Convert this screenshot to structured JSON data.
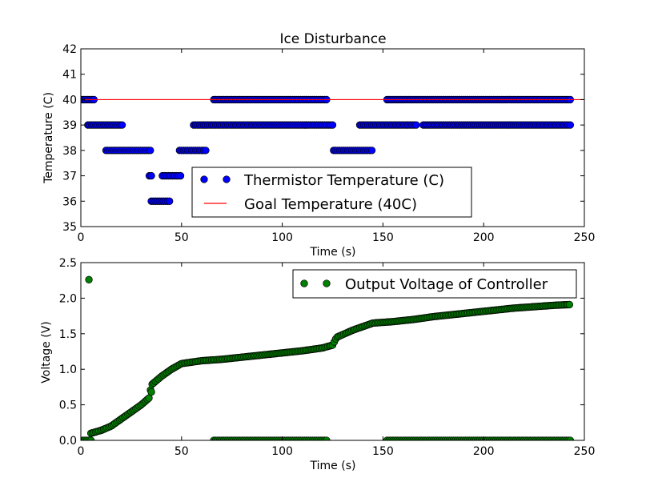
{
  "chart_data": [
    {
      "type": "scatter",
      "title": "Ice Disturbance",
      "xlabel": "Time (s)",
      "ylabel": "Temperature (C)",
      "xlim": [
        0,
        250
      ],
      "ylim": [
        35,
        42
      ],
      "xticks": [
        "0",
        "50",
        "100",
        "150",
        "200",
        "250"
      ],
      "yticks": [
        "35",
        "36",
        "37",
        "38",
        "39",
        "40",
        "41",
        "42"
      ],
      "legend_position": "lower-center",
      "series": [
        {
          "name": "Thermistor Temperature (C)",
          "kind": "markers",
          "color": "#0000ff",
          "segments": [
            {
              "x_start": 0.5,
              "x_end": 6.5,
              "y": 40
            },
            {
              "x_start": 3.5,
              "x_end": 12.5,
              "y": 39
            },
            {
              "x_start": 13.5,
              "x_end": 20.5,
              "y": 39
            },
            {
              "x_start": 12.5,
              "x_end": 35.0,
              "y": 38
            },
            {
              "x_start": 34.0,
              "x_end": 35.5,
              "y": 37
            },
            {
              "x_start": 35.0,
              "x_end": 44.5,
              "y": 36
            },
            {
              "x_start": 40.5,
              "x_end": 50.0,
              "y": 37
            },
            {
              "x_start": 49.0,
              "x_end": 62.5,
              "y": 38
            },
            {
              "x_start": 56.0,
              "x_end": 125.5,
              "y": 39
            },
            {
              "x_start": 66.0,
              "x_end": 122.0,
              "y": 40
            },
            {
              "x_start": 125.5,
              "x_end": 144.5,
              "y": 38
            },
            {
              "x_start": 138.5,
              "x_end": 167.0,
              "y": 39
            },
            {
              "x_start": 152.0,
              "x_end": 243.0,
              "y": 40
            },
            {
              "x_start": 170.0,
              "x_end": 243.0,
              "y": 39
            }
          ]
        },
        {
          "name": "Goal Temperature (40C)",
          "kind": "line",
          "color": "#ff0000",
          "x": [
            0,
            250
          ],
          "y": [
            40,
            40
          ]
        }
      ]
    },
    {
      "type": "scatter",
      "title": "",
      "xlabel": "Time (s)",
      "ylabel": "Voltage (V)",
      "xlim": [
        0,
        250
      ],
      "ylim": [
        0.0,
        2.5
      ],
      "xticks": [
        "0",
        "50",
        "100",
        "150",
        "200",
        "250"
      ],
      "yticks": [
        "0.0",
        "0.5",
        "1.0",
        "1.5",
        "2.0",
        "2.5"
      ],
      "legend_position": "upper-right",
      "series": [
        {
          "name": "Output Voltage of Controller",
          "kind": "markers",
          "color": "#008000",
          "curve": [
            [
              5,
              0.1
            ],
            [
              10,
              0.14
            ],
            [
              15,
              0.2
            ],
            [
              20,
              0.3
            ],
            [
              25,
              0.4
            ],
            [
              30,
              0.5
            ],
            [
              34,
              0.6
            ],
            [
              35,
              0.78
            ],
            [
              40,
              0.9
            ],
            [
              45,
              1.0
            ],
            [
              50,
              1.08
            ],
            [
              55,
              1.1
            ],
            [
              60,
              1.12
            ],
            [
              70,
              1.14
            ],
            [
              80,
              1.17
            ],
            [
              90,
              1.2
            ],
            [
              100,
              1.23
            ],
            [
              110,
              1.26
            ],
            [
              120,
              1.3
            ],
            [
              125,
              1.34
            ],
            [
              127,
              1.45
            ],
            [
              135,
              1.55
            ],
            [
              145,
              1.65
            ],
            [
              155,
              1.67
            ],
            [
              165,
              1.7
            ],
            [
              175,
              1.74
            ],
            [
              185,
              1.77
            ],
            [
              195,
              1.8
            ],
            [
              205,
              1.83
            ],
            [
              215,
              1.86
            ],
            [
              225,
              1.88
            ],
            [
              235,
              1.9
            ],
            [
              243,
              1.91
            ]
          ],
          "extra_points": [
            [
              4,
              2.26
            ],
            [
              35,
              0.68
            ],
            [
              1,
              0.0
            ],
            [
              2,
              0.0
            ],
            [
              3,
              0.0
            ],
            [
              4,
              0.0
            ],
            [
              5,
              0.0
            ]
          ],
          "zero_segments": [
            {
              "x_start": 66.0,
              "x_end": 122.0,
              "y": 0.0
            },
            {
              "x_start": 152.0,
              "x_end": 243.0,
              "y": 0.0
            }
          ]
        }
      ]
    }
  ]
}
